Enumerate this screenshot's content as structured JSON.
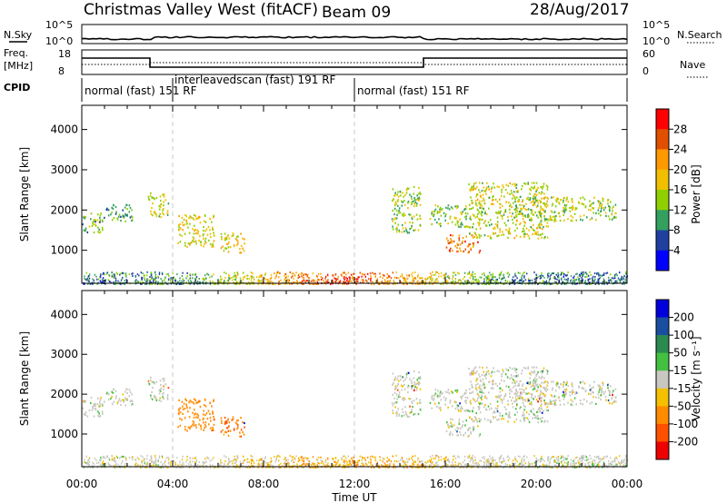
{
  "header": {
    "title": "Christmas Valley West (fitACF)",
    "beam": "Beam 09",
    "date": "28/Aug/2017"
  },
  "strip_labels": {
    "nsky": "N.Sky",
    "nsearch": "N.Search",
    "freq_top": "Freq.",
    "freq_unit": "[MHz]",
    "nave": "Nave",
    "cpid": "CPID",
    "nsky_ticks": [
      "10^5",
      "10^0"
    ],
    "nsearch_ticks": [
      "10^5",
      "10^0"
    ],
    "freq_ticks": [
      "18",
      "8"
    ],
    "nave_ticks": [
      "60",
      "0"
    ]
  },
  "cpid_segments": [
    {
      "label": "normal (fast) 151 RF",
      "start": 0,
      "end": 3.8
    },
    {
      "label": "interleavedscan (fast) 191 RF",
      "start": 3.8,
      "end": 12.0
    },
    {
      "label": "normal (fast) 151 RF",
      "start": 12.0,
      "end": 24
    }
  ],
  "colorbars": {
    "power": {
      "label": "Power [dB]",
      "ticks": [
        "28",
        "24",
        "20",
        "16",
        "12",
        "8",
        "4"
      ],
      "colors": [
        "#ff0000",
        "#e05000",
        "#ff9900",
        "#f0c000",
        "#8fd000",
        "#33a060",
        "#2040a0",
        "#0000ff"
      ]
    },
    "velocity": {
      "label": "Velocity [m s⁻¹]",
      "ticks": [
        "200",
        "100",
        "50",
        "15",
        "-15",
        "-50",
        "-100",
        "-200"
      ],
      "colors": [
        "#0000dd",
        "#1a4ea0",
        "#2b8a50",
        "#44c040",
        "#c8c8c0",
        "#f4c000",
        "#ff8c00",
        "#ff5000",
        "#ee0000"
      ]
    }
  },
  "chart_data": {
    "type": "heatmap",
    "x_axis": {
      "label": "Time UT",
      "ticks": [
        "00:00",
        "04:00",
        "08:00",
        "12:00",
        "16:00",
        "20:00",
        "00:00"
      ],
      "range_hours": [
        0,
        24
      ]
    },
    "y_axis": {
      "label": "Slant Range [km]",
      "ticks": [
        "1000",
        "2000",
        "3000",
        "4000"
      ],
      "range_km": [
        180,
        4600
      ]
    },
    "panels": [
      "power",
      "velocity"
    ],
    "scatter_regions": [
      {
        "t0": 0.0,
        "t1": 1.0,
        "r0": 1450,
        "r1": 1950,
        "power": 10,
        "velocity": 0
      },
      {
        "t0": 1.0,
        "t1": 2.2,
        "r0": 1700,
        "r1": 2150,
        "power": 9,
        "velocity": 0
      },
      {
        "t0": 2.9,
        "t1": 3.8,
        "r0": 1850,
        "r1": 2450,
        "power": 13,
        "velocity": 0
      },
      {
        "t0": 4.2,
        "t1": 5.8,
        "r0": 1100,
        "r1": 1900,
        "power": 15,
        "velocity": -60
      },
      {
        "t0": 6.1,
        "t1": 7.2,
        "r0": 950,
        "r1": 1450,
        "power": 17,
        "velocity": -70
      },
      {
        "t0": 13.6,
        "t1": 14.9,
        "r0": 1450,
        "r1": 2600,
        "power": 12,
        "velocity": 0
      },
      {
        "t0": 15.3,
        "t1": 17.0,
        "r0": 1600,
        "r1": 2150,
        "power": 12,
        "velocity": 0
      },
      {
        "t0": 16.0,
        "t1": 17.5,
        "r0": 950,
        "r1": 1400,
        "power": 22,
        "velocity": 0
      },
      {
        "t0": 17.0,
        "t1": 20.5,
        "r0": 1300,
        "r1": 2700,
        "power": 14,
        "velocity": 0
      },
      {
        "t0": 19.0,
        "t1": 23.5,
        "r0": 1750,
        "r1": 2350,
        "power": 12,
        "velocity": 0
      }
    ],
    "ground_scatter": {
      "r0": 180,
      "r1": 480,
      "peak_hour": 11.5,
      "velocity_tint": -15
    }
  }
}
